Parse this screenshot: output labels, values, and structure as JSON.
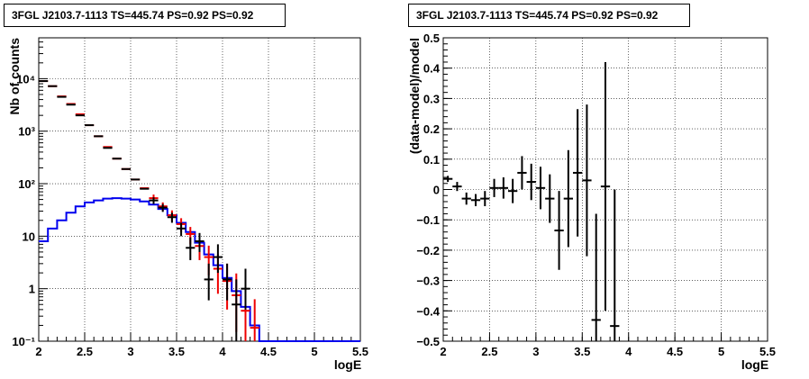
{
  "chart_data": [
    {
      "type": "histogram",
      "title": "3FGL J2103.7-1113 TS=445.74 PS=0.92 PS=0.92",
      "xlabel": "logE",
      "ylabel": "Nb of counts",
      "xlim": [
        2,
        5.5
      ],
      "ylim": [
        0.1,
        60000
      ],
      "yscale": "log",
      "grid": true,
      "xticks": [
        "2",
        "2.5",
        "3",
        "3.5",
        "4",
        "4.5",
        "5",
        "5.5"
      ],
      "yticks": [
        {
          "value": 0.1,
          "label": "10⁻¹"
        },
        {
          "value": 1,
          "label": "1"
        },
        {
          "value": 10,
          "label": "10"
        },
        {
          "value": 100,
          "label": "10²"
        },
        {
          "value": 1000,
          "label": "10³"
        },
        {
          "value": 10000,
          "label": "10⁴"
        }
      ],
      "bin_edges": [
        2.0,
        2.1,
        2.2,
        2.3,
        2.4,
        2.5,
        2.6,
        2.7,
        2.8,
        2.9,
        3.0,
        3.1,
        3.2,
        3.3,
        3.4,
        3.5,
        3.6,
        3.7,
        3.8,
        3.9,
        4.0,
        4.1,
        4.2,
        4.3,
        4.4,
        4.5,
        4.6,
        4.7,
        4.8,
        4.9,
        5.0,
        5.1,
        5.2,
        5.3,
        5.4,
        5.5
      ],
      "series": [
        {
          "name": "",
          "color": "#0000ee",
          "style": "step",
          "values": [
            8,
            14,
            20,
            28,
            37,
            44,
            48,
            52,
            53,
            52,
            50,
            46,
            40,
            33,
            25,
            18,
            12,
            7.5,
            4.5,
            2.8,
            1.6,
            0.9,
            0.45,
            0.2,
            0.1,
            0.1,
            0.1,
            0.1,
            0.1,
            0.1,
            0.1,
            0.1,
            0.1,
            0.1,
            0.1
          ]
        },
        {
          "name": "",
          "color": "#ee0000",
          "style": "errorbar",
          "x": [
            2.05,
            2.15,
            2.25,
            2.35,
            2.45,
            2.55,
            2.65,
            2.75,
            2.85,
            2.95,
            3.05,
            3.15,
            3.25,
            3.35,
            3.45,
            3.55,
            3.65,
            3.75,
            3.85,
            3.95,
            4.05,
            4.15,
            4.25,
            4.35
          ],
          "y": [
            9000,
            7200,
            4600,
            3300,
            2100,
            1300,
            800,
            500,
            300,
            190,
            120,
            82,
            53,
            37,
            25,
            17,
            11,
            6.5,
            4.0,
            2.4,
            1.4,
            0.75,
            0.38,
            0.18
          ],
          "yerr_low": [
            0,
            0,
            0,
            0,
            0,
            0,
            0,
            0,
            0,
            0,
            0,
            0,
            9,
            7,
            6,
            5,
            4,
            3,
            2.2,
            1.6,
            1.0,
            0.6,
            0.32,
            0.17
          ],
          "yerr_high": [
            0,
            0,
            0,
            0,
            0,
            0,
            0,
            0,
            0,
            0,
            0,
            0,
            9,
            7,
            6,
            5,
            4,
            3,
            2.6,
            2.1,
            1.6,
            1.2,
            0.8,
            0.45
          ]
        },
        {
          "name": "",
          "color": "#000000",
          "style": "errorbar",
          "x": [
            2.05,
            2.15,
            2.25,
            2.35,
            2.45,
            2.55,
            2.65,
            2.75,
            2.85,
            2.95,
            3.05,
            3.15,
            3.25,
            3.35,
            3.45,
            3.55,
            3.65,
            3.75,
            3.85,
            3.95,
            4.05,
            4.15,
            4.25
          ],
          "y": [
            9000,
            7200,
            4500,
            3200,
            2000,
            1300,
            800,
            480,
            300,
            190,
            120,
            80,
            48,
            35,
            23,
            14,
            6,
            8,
            1.5,
            4,
            1.5,
            0.5,
            1
          ],
          "yerr_low": [
            0,
            0,
            0,
            0,
            0,
            0,
            0,
            0,
            0,
            0,
            0,
            0,
            7,
            6,
            5,
            4,
            2.5,
            3,
            0.9,
            2,
            0.9,
            0.4,
            0.6
          ],
          "yerr_high": [
            0,
            0,
            0,
            0,
            0,
            0,
            0,
            0,
            0,
            0,
            0,
            0,
            7,
            6,
            5,
            4,
            3.5,
            3.5,
            1.5,
            3,
            1.5,
            1,
            1.4
          ]
        }
      ]
    },
    {
      "type": "errorbar",
      "title": "3FGL J2103.7-1113 TS=445.74 PS=0.92 PS=0.92",
      "xlabel": "logE",
      "ylabel": "(data-model)/model",
      "xlim": [
        2,
        5.5
      ],
      "ylim": [
        -0.5,
        0.5
      ],
      "grid": true,
      "xticks": [
        "2",
        "2.5",
        "3",
        "3.5",
        "4",
        "4.5",
        "5",
        "5.5"
      ],
      "yticks": [
        "−0.5",
        "−0.4",
        "−0.3",
        "−0.2",
        "−0.1",
        "0",
        "0.1",
        "0.2",
        "0.3",
        "0.4",
        "0.5"
      ],
      "series": [
        {
          "name": "",
          "color": "#000000",
          "x": [
            2.05,
            2.15,
            2.25,
            2.35,
            2.45,
            2.55,
            2.65,
            2.75,
            2.85,
            2.95,
            3.05,
            3.15,
            3.25,
            3.35,
            3.45,
            3.55,
            3.65,
            3.75,
            3.85
          ],
          "y": [
            0.035,
            0.01,
            -0.03,
            -0.035,
            -0.03,
            0.005,
            0.005,
            -0.005,
            0.055,
            0.025,
            0.005,
            -0.03,
            -0.135,
            -0.03,
            0.055,
            0.03,
            -0.43,
            0.01,
            -0.45
          ],
          "yerr": [
            0.01,
            0.015,
            0.02,
            0.02,
            0.025,
            0.03,
            0.035,
            0.04,
            0.055,
            0.06,
            0.07,
            0.08,
            0.13,
            0.16,
            0.21,
            0.25,
            0.35,
            0.41,
            0.45
          ]
        }
      ]
    }
  ]
}
